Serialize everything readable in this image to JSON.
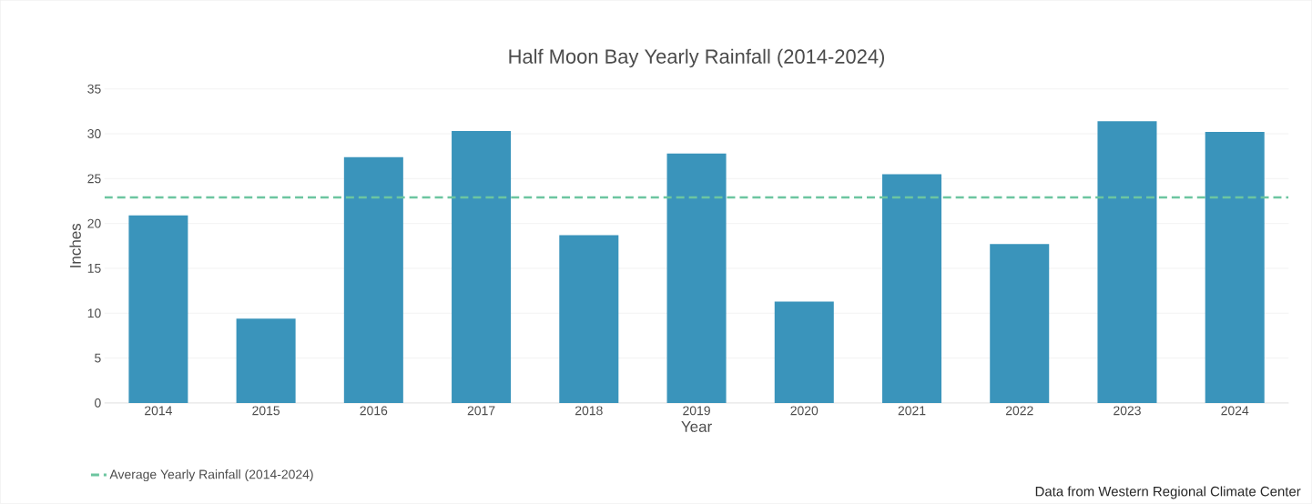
{
  "chart_data": {
    "type": "bar",
    "title": "Half Moon Bay Yearly Rainfall (2014-2024)",
    "xlabel": "Year",
    "ylabel": "Inches",
    "categories": [
      "2014",
      "2015",
      "2016",
      "2017",
      "2018",
      "2019",
      "2020",
      "2021",
      "2022",
      "2023",
      "2024"
    ],
    "values": [
      20.9,
      9.4,
      27.4,
      30.3,
      18.7,
      27.8,
      11.3,
      25.5,
      17.7,
      31.4,
      30.2
    ],
    "color": "#3a94bb",
    "ylim": [
      0,
      35
    ],
    "yticks": [
      0,
      5,
      10,
      15,
      20,
      25,
      30,
      35
    ],
    "grid": "y",
    "legend": "bottom",
    "ref_lines": [
      {
        "axis": "y",
        "value": 22.9,
        "label": "Average Yearly Rainfall (2014-2024)",
        "color": "#6cc5a0",
        "line_style": "dashed"
      }
    ],
    "annotations": [
      "Data from Western Regional Climate Center"
    ]
  }
}
